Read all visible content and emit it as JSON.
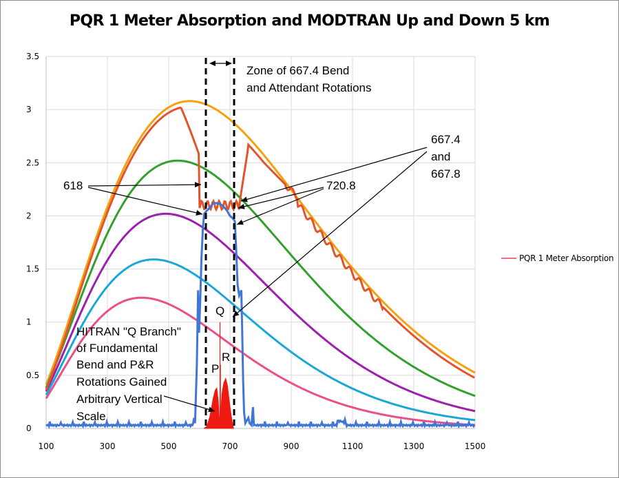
{
  "chart_data": {
    "type": "line",
    "title": "PQR 1 Meter Absorption and MODTRAN Up and Down 5 km",
    "xlabel": "",
    "ylabel": "",
    "xlim": [
      100,
      1500
    ],
    "ylim": [
      0,
      3.5
    ],
    "x_ticks": [
      "100",
      "300",
      "500",
      "700",
      "900",
      "1100",
      "1300",
      "1500"
    ],
    "y_ticks": [
      "0",
      "0.5",
      "1",
      "1.5",
      "2",
      "2.5",
      "3",
      "3.5"
    ],
    "legend": [
      "PQR 1 Meter Absorption"
    ],
    "colors": {
      "orange": "#f5a010",
      "red_orange": "#e2542a",
      "green": "#32a02c",
      "purple": "#9c1fae",
      "cyan": "#1aa7d8",
      "pink": "#ea4f8a",
      "blue": "#3f76d8",
      "red": "#ee1a12",
      "legend": "#f06f7f"
    },
    "series": [
      {
        "name": "Planck curve (orange)",
        "peak_x": 600,
        "peak_y": 3.08,
        "values_at_ticks": [
          0.4,
          2.55,
          3.04,
          2.99,
          2.2,
          1.35,
          0.85,
          0.62
        ]
      },
      {
        "name": "MODTRAN down/up (red-orange)",
        "values": {
          "x": [
            100,
            300,
            500,
            560,
            600,
            620,
            680,
            720,
            760,
            900,
            1100,
            1500
          ],
          "y": [
            0.38,
            2.45,
            2.95,
            2.97,
            2.55,
            2.2,
            2.1,
            2.1,
            2.65,
            2.18,
            1.33,
            0.6
          ]
        }
      },
      {
        "name": "Planck curve (green)",
        "peak_x": 580,
        "peak_y": 2.52,
        "values_at_ticks": [
          0.35,
          2.1,
          2.5,
          2.3,
          1.55,
          0.9,
          0.55,
          0.38
        ]
      },
      {
        "name": "Planck curve (purple)",
        "peak_x": 510,
        "peak_y": 2.02,
        "values_at_ticks": [
          0.32,
          1.72,
          2.0,
          1.72,
          1.07,
          0.57,
          0.33,
          0.22
        ]
      },
      {
        "name": "Planck curve (cyan)",
        "peak_x": 470,
        "peak_y": 1.59,
        "values_at_ticks": [
          0.28,
          1.37,
          1.58,
          1.25,
          0.7,
          0.36,
          0.18,
          0.11
        ]
      },
      {
        "name": "Planck curve (pink)",
        "peak_x": 430,
        "peak_y": 1.23,
        "values_at_ticks": [
          0.26,
          1.06,
          1.21,
          0.88,
          0.46,
          0.2,
          0.09,
          0.05
        ]
      },
      {
        "name": "PQR 1 Meter Absorption (blue)",
        "values": {
          "x": [
            100,
            580,
            600,
            620,
            640,
            660,
            700,
            720,
            740,
            760,
            780,
            1500
          ],
          "y": [
            0.03,
            0.05,
            1.2,
            2.0,
            2.1,
            2.12,
            2.0,
            1.95,
            1.3,
            0.2,
            0.03,
            0.02
          ]
        }
      },
      {
        "name": "HITRAN Q Branch (red)",
        "values": {
          "x": [
            620,
            655,
            665,
            667.5,
            670,
            690,
            710
          ],
          "y": [
            0,
            0.38,
            0.2,
            1.0,
            0.3,
            0.47,
            0
          ]
        }
      }
    ],
    "vertical_markers": [
      618,
      720.8
    ]
  },
  "annotations": {
    "zone": [
      "Zone of 667.4 Bend",
      "and Attendant Rotations"
    ],
    "label_618": "618",
    "label_667": [
      "667.4",
      "and",
      "667.8"
    ],
    "label_720": "720.8",
    "hitran": [
      "HITRAN \"Q Branch\"",
      "of Fundamental",
      "Bend and P&R",
      "Rotations Gained",
      "Arbitrary Vertical",
      "Scale"
    ],
    "P": "P",
    "Q": "Q",
    "R": "R"
  }
}
